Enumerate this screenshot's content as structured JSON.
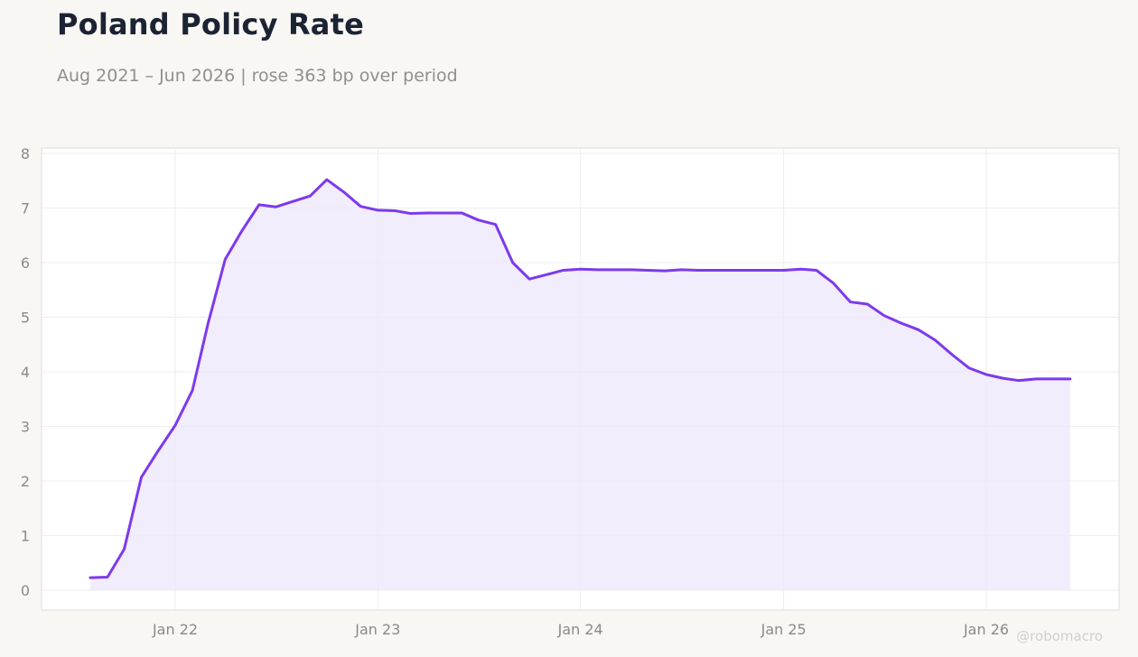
{
  "title": "Poland Policy Rate",
  "subtitle": "Aug 2021 – Jun 2026 | rose 363 bp over period",
  "watermark": "@robomacro",
  "colors": {
    "line": "#7c3aed",
    "fill": "#ede7fb",
    "background": "#f9f7f4",
    "plot_background": "#ffffff",
    "grid": "#eeeeee",
    "text": "#8a8a8a"
  },
  "chart_data": {
    "type": "area",
    "title": "Poland Policy Rate",
    "subtitle": "Aug 2021 – Jun 2026 | rose 363 bp over period",
    "xlabel": "",
    "ylabel": "",
    "ylim": [
      0,
      8
    ],
    "xlim": [
      "2021-05-01",
      "2026-08-01"
    ],
    "yticks": [
      "0",
      "1",
      "2",
      "3",
      "4",
      "5",
      "6",
      "7",
      "8"
    ],
    "xticks": [
      {
        "date": "2022-01-01",
        "label": "Jan 22"
      },
      {
        "date": "2023-01-01",
        "label": "Jan 23"
      },
      {
        "date": "2024-01-01",
        "label": "Jan 24"
      },
      {
        "date": "2025-01-01",
        "label": "Jan 25"
      },
      {
        "date": "2026-01-01",
        "label": "Jan 26"
      }
    ],
    "grid": true,
    "legend": "none",
    "series": [
      {
        "x": [
          "2021-08-01",
          "2021-09-01",
          "2021-10-01",
          "2021-11-01",
          "2021-12-01",
          "2022-01-01",
          "2022-02-01",
          "2022-03-01",
          "2022-04-01",
          "2022-05-01",
          "2022-06-01",
          "2022-07-01",
          "2022-08-01",
          "2022-09-01",
          "2022-10-01",
          "2022-11-01",
          "2022-12-01",
          "2023-01-01",
          "2023-02-01",
          "2023-03-01",
          "2023-04-01",
          "2023-05-01",
          "2023-06-01",
          "2023-07-01",
          "2023-08-01",
          "2023-09-01",
          "2023-10-01",
          "2023-11-01",
          "2023-12-01",
          "2024-01-01",
          "2024-02-01",
          "2024-03-01",
          "2024-04-01",
          "2024-05-01",
          "2024-06-01",
          "2024-07-01",
          "2024-08-01",
          "2024-09-01",
          "2024-10-01",
          "2024-11-01",
          "2024-12-01",
          "2025-01-01",
          "2025-02-01",
          "2025-03-01",
          "2025-04-01",
          "2025-05-01",
          "2025-06-01",
          "2025-07-01",
          "2025-08-01",
          "2025-09-01",
          "2025-10-01",
          "2025-11-01",
          "2025-12-01",
          "2026-01-01",
          "2026-02-01",
          "2026-03-01",
          "2026-04-01",
          "2026-05-01",
          "2026-06-01"
        ],
        "values": [
          0.23,
          0.24,
          0.75,
          2.07,
          2.55,
          3.02,
          3.66,
          4.88,
          6.06,
          6.58,
          7.06,
          7.02,
          7.12,
          7.22,
          7.52,
          7.29,
          7.03,
          6.96,
          6.95,
          6.9,
          6.91,
          6.91,
          6.91,
          6.78,
          6.7,
          6.0,
          5.7,
          5.78,
          5.86,
          5.88,
          5.87,
          5.87,
          5.87,
          5.86,
          5.85,
          5.87,
          5.86,
          5.86,
          5.86,
          5.86,
          5.86,
          5.86,
          5.88,
          5.86,
          5.62,
          5.28,
          5.24,
          5.03,
          4.89,
          4.77,
          4.58,
          4.31,
          4.07,
          3.95,
          3.88,
          3.84,
          3.87,
          3.87,
          3.87
        ]
      }
    ]
  }
}
